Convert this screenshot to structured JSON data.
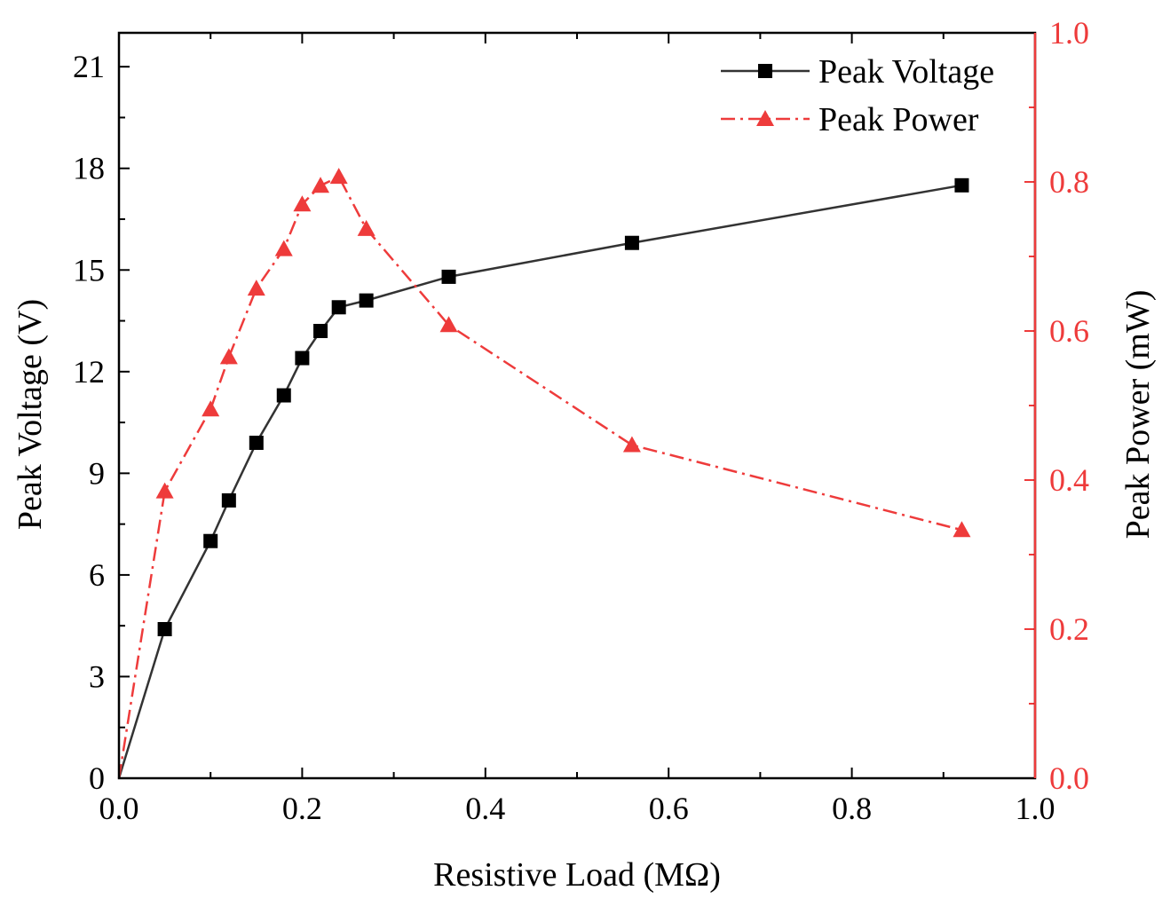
{
  "chart_data": {
    "type": "line",
    "title": "",
    "xlabel": "Resistive Load (MΩ)",
    "ylabel": "Peak Voltage (V)",
    "y2label": "Peak Power (mW)",
    "xlim": [
      0.0,
      1.0
    ],
    "ylim": [
      0,
      22
    ],
    "y2lim": [
      0.0,
      1.0
    ],
    "x_ticks": [
      "0.0",
      "0.2",
      "0.4",
      "0.6",
      "0.8",
      "1.0"
    ],
    "y_ticks": [
      "0",
      "3",
      "6",
      "9",
      "12",
      "15",
      "18",
      "21"
    ],
    "y2_ticks": [
      "0.0",
      "0.2",
      "0.4",
      "0.6",
      "0.8",
      "1.0"
    ],
    "legend_position": "top-right",
    "colors": {
      "voltage": "#000000",
      "voltage_line": "#333333",
      "power": "#ee3b3b"
    },
    "series": [
      {
        "name": "Peak Voltage",
        "axis": "left",
        "marker": "square",
        "x": [
          0.0,
          0.05,
          0.1,
          0.12,
          0.15,
          0.18,
          0.2,
          0.22,
          0.24,
          0.27,
          0.36,
          0.56,
          0.92
        ],
        "values": [
          0.0,
          4.4,
          7.0,
          8.2,
          9.9,
          11.3,
          12.4,
          13.2,
          13.9,
          14.1,
          14.8,
          15.8,
          17.5
        ]
      },
      {
        "name": "Peak Power",
        "axis": "right",
        "marker": "triangle",
        "x": [
          0.0,
          0.05,
          0.1,
          0.12,
          0.15,
          0.18,
          0.2,
          0.22,
          0.24,
          0.27,
          0.36,
          0.56,
          0.92
        ],
        "values": [
          0.0,
          0.385,
          0.495,
          0.565,
          0.657,
          0.71,
          0.77,
          0.795,
          0.807,
          0.737,
          0.608,
          0.447,
          0.333
        ]
      }
    ]
  }
}
